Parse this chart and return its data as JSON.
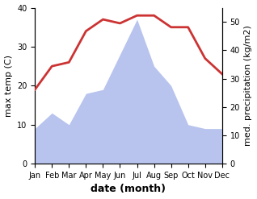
{
  "months": [
    "Jan",
    "Feb",
    "Mar",
    "Apr",
    "May",
    "Jun",
    "Jul",
    "Aug",
    "Sep",
    "Oct",
    "Nov",
    "Dec"
  ],
  "temperature": [
    19,
    25,
    26,
    34,
    37,
    36,
    38,
    38,
    35,
    35,
    27,
    23
  ],
  "rainfall_left": [
    9,
    13,
    10,
    18,
    19,
    28,
    37,
    25,
    20,
    10,
    9,
    9
  ],
  "temp_color": "#cc3333",
  "rain_color": "#b8c4ee",
  "ylabel_left": "max temp (C)",
  "ylabel_right": "med. precipitation (kg/m2)",
  "xlabel": "date (month)",
  "ylim_left": [
    0,
    40
  ],
  "ylim_right": [
    0,
    55
  ],
  "yticks_left": [
    0,
    10,
    20,
    30,
    40
  ],
  "yticks_right": [
    0,
    10,
    20,
    30,
    40,
    50
  ],
  "temp_linewidth": 2.0,
  "xlabel_fontsize": 9,
  "ylabel_fontsize": 8,
  "tick_fontsize": 7
}
